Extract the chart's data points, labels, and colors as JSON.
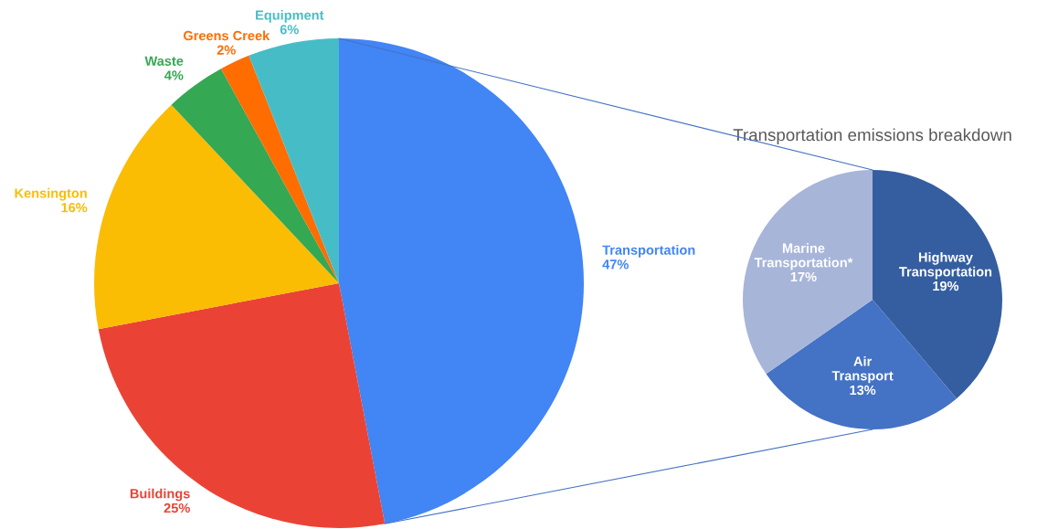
{
  "chart_data": [
    {
      "type": "pie",
      "categories": [
        "Transportation",
        "Buildings",
        "Kensington",
        "Waste",
        "Greens Creek",
        "Equipment"
      ],
      "values": [
        47,
        25,
        16,
        4,
        2,
        6
      ],
      "value_labels": [
        "47%",
        "25%",
        "16%",
        "4%",
        "2%",
        "6%"
      ],
      "colors": [
        "#4285f4",
        "#ea4335",
        "#fbbc04",
        "#34a853",
        "#ff6d01",
        "#46bdc6"
      ]
    },
    {
      "type": "pie",
      "title": "Transportation emissions breakdown",
      "categories": [
        "Highway Transportation",
        "Air Transport",
        "Marine Transportation*"
      ],
      "values": [
        19,
        13,
        17
      ],
      "value_labels": [
        "19%",
        "13%",
        "17%"
      ],
      "colors": [
        "#355ea0",
        "#4472c4",
        "#a7b5d9"
      ]
    }
  ]
}
